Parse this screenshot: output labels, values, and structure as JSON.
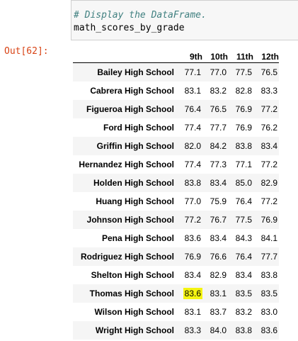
{
  "input_cell": {
    "comment": "# Display the DataFrame.",
    "code": "math_scores_by_grade"
  },
  "output_prompt": "Out[62]:",
  "table": {
    "columns": [
      "9th",
      "10th",
      "11th",
      "12th"
    ],
    "rows": [
      {
        "school": "Bailey High School",
        "values": [
          "77.1",
          "77.0",
          "77.5",
          "76.5"
        ]
      },
      {
        "school": "Cabrera High School",
        "values": [
          "83.1",
          "83.2",
          "82.8",
          "83.3"
        ]
      },
      {
        "school": "Figueroa High School",
        "values": [
          "76.4",
          "76.5",
          "76.9",
          "77.2"
        ]
      },
      {
        "school": "Ford High School",
        "values": [
          "77.4",
          "77.7",
          "76.9",
          "76.2"
        ]
      },
      {
        "school": "Griffin High School",
        "values": [
          "82.0",
          "84.2",
          "83.8",
          "83.4"
        ]
      },
      {
        "school": "Hernandez High School",
        "values": [
          "77.4",
          "77.3",
          "77.1",
          "77.2"
        ]
      },
      {
        "school": "Holden High School",
        "values": [
          "83.8",
          "83.4",
          "85.0",
          "82.9"
        ]
      },
      {
        "school": "Huang High School",
        "values": [
          "77.0",
          "75.9",
          "76.4",
          "77.2"
        ]
      },
      {
        "school": "Johnson High School",
        "values": [
          "77.2",
          "76.7",
          "77.5",
          "76.9"
        ]
      },
      {
        "school": "Pena High School",
        "values": [
          "83.6",
          "83.4",
          "84.3",
          "84.1"
        ]
      },
      {
        "school": "Rodriguez High School",
        "values": [
          "76.9",
          "76.6",
          "76.4",
          "77.7"
        ]
      },
      {
        "school": "Shelton High School",
        "values": [
          "83.4",
          "82.9",
          "83.4",
          "83.8"
        ]
      },
      {
        "school": "Thomas High School",
        "values": [
          "83.6",
          "83.1",
          "83.5",
          "83.5"
        ]
      },
      {
        "school": "Wilson High School",
        "values": [
          "83.1",
          "83.7",
          "83.2",
          "83.0"
        ]
      },
      {
        "school": "Wright High School",
        "values": [
          "83.3",
          "84.0",
          "83.8",
          "83.6"
        ]
      }
    ],
    "highlight": {
      "row": 12,
      "col": 0,
      "color": "#f4f411"
    }
  },
  "colors": {
    "comment": "#408080",
    "out_prompt": "#d84315",
    "cell_background": "#f7f7f7",
    "row_stripe": "#f5f5f5"
  }
}
